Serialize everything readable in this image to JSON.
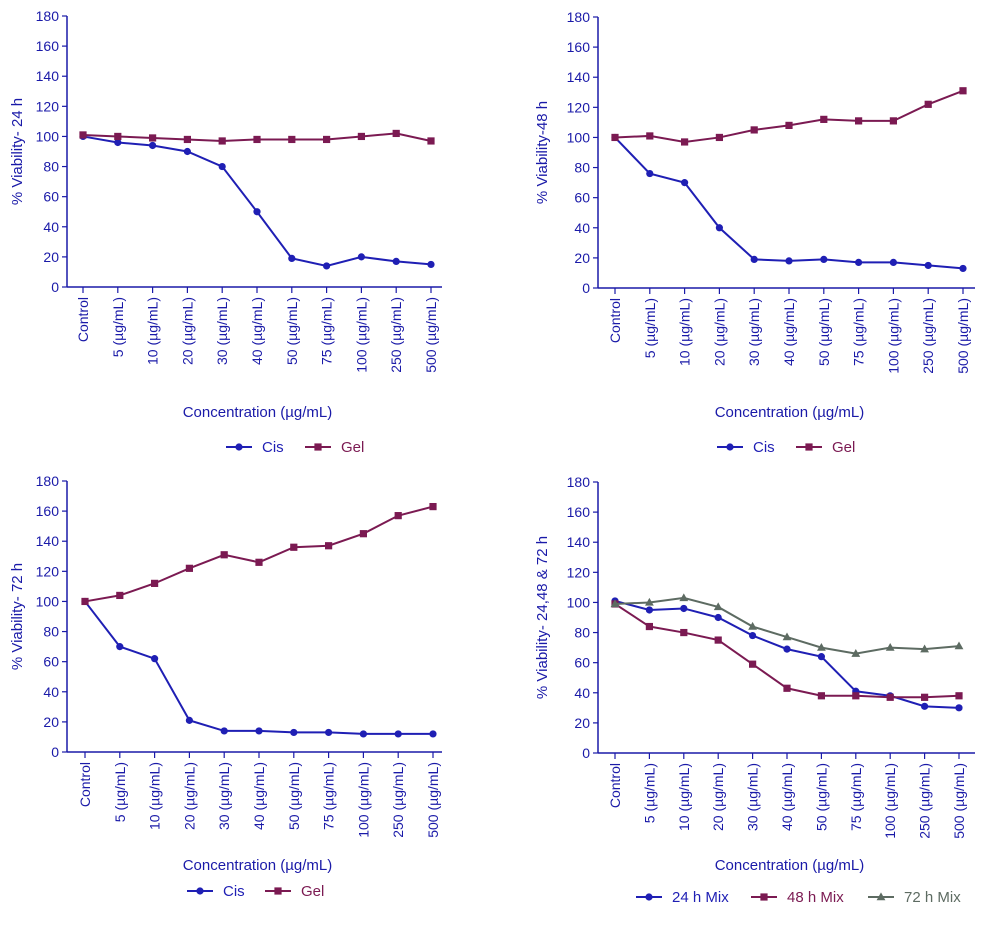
{
  "chart_data": [
    {
      "type": "line",
      "xlabel": "Concentration (µg/mL)",
      "ylabel": "% Viability- 24 h",
      "ylim": [
        0,
        180
      ],
      "ytick_step": 20,
      "grid": false,
      "legend_position": "bottom",
      "categories": [
        "Control",
        "5 (µg/mL)",
        "10 (µg/mL)",
        "20 (µg/mL)",
        "30 (µg/mL)",
        "40 (µg/mL)",
        "50 (µg/mL)",
        "75 (µg/mL)",
        "100 (µg/mL)",
        "250 (µg/mL)",
        "500 (µg/mL)"
      ],
      "series": [
        {
          "name": "Cis",
          "color": "#1f1fb4",
          "marker": "circle",
          "values": [
            100,
            96,
            94,
            90,
            80,
            50,
            19,
            14,
            20,
            17,
            15
          ]
        },
        {
          "name": "Gel",
          "color": "#7b1a52",
          "marker": "square",
          "values": [
            101,
            100,
            99,
            98,
            97,
            98,
            98,
            98,
            100,
            102,
            97
          ]
        }
      ]
    },
    {
      "type": "line",
      "xlabel": "Concentration (µg/mL)",
      "ylabel": "% Viability-48 h",
      "ylim": [
        0,
        180
      ],
      "ytick_step": 20,
      "grid": false,
      "legend_position": "bottom",
      "categories": [
        "Control",
        "5 (µg/mL)",
        "10 (µg/mL)",
        "20 (µg/mL)",
        "30 (µg/mL)",
        "40 (µg/mL)",
        "50 (µg/mL)",
        "75 (µg/mL)",
        "100 (µg/mL)",
        "250 (µg/mL)",
        "500 (µg/mL)"
      ],
      "series": [
        {
          "name": "Cis",
          "color": "#1f1fb4",
          "marker": "circle",
          "values": [
            100,
            76,
            70,
            40,
            19,
            18,
            19,
            17,
            17,
            15,
            13
          ]
        },
        {
          "name": "Gel",
          "color": "#7b1a52",
          "marker": "square",
          "values": [
            100,
            101,
            97,
            100,
            105,
            108,
            112,
            111,
            111,
            122,
            131
          ]
        }
      ]
    },
    {
      "type": "line",
      "xlabel": "Concentration (µg/mL)",
      "ylabel": "% Viability- 72 h",
      "ylim": [
        0,
        180
      ],
      "ytick_step": 20,
      "grid": false,
      "legend_position": "bottom",
      "categories": [
        "Control",
        "5 (µg/mL)",
        "10 (µg/mL)",
        "20 (µg/mL)",
        "30 (µg/mL)",
        "40 (µg/mL)",
        "50 (µg/mL)",
        "75 (µg/mL)",
        "100 (µg/mL)",
        "250 (µg/mL)",
        "500 (µg/mL)"
      ],
      "series": [
        {
          "name": "Cis",
          "color": "#1f1fb4",
          "marker": "circle",
          "values": [
            100,
            70,
            62,
            21,
            14,
            14,
            13,
            13,
            12,
            12,
            12
          ]
        },
        {
          "name": "Gel",
          "color": "#7b1a52",
          "marker": "square",
          "values": [
            100,
            104,
            112,
            122,
            131,
            126,
            136,
            137,
            145,
            157,
            163
          ]
        }
      ]
    },
    {
      "type": "line",
      "xlabel": "Concentration (µg/mL)",
      "ylabel": "% Viability- 24,48 & 72 h",
      "ylim": [
        0,
        180
      ],
      "ytick_step": 20,
      "grid": false,
      "legend_position": "bottom",
      "categories": [
        "Control",
        "5 (µg/mL)",
        "10 (µg/mL)",
        "20 (µg/mL)",
        "30 (µg/mL)",
        "40 (µg/mL)",
        "50 (µg/mL)",
        "75 (µg/mL)",
        "100 (µg/mL)",
        "250 (µg/mL)",
        "500 (µg/mL)"
      ],
      "series": [
        {
          "name": "24 h Mix",
          "color": "#1f1fb4",
          "marker": "circle",
          "values": [
            101,
            95,
            96,
            90,
            78,
            69,
            64,
            41,
            38,
            31,
            30
          ]
        },
        {
          "name": "48 h Mix",
          "color": "#7b1a52",
          "marker": "square",
          "values": [
            99,
            84,
            80,
            75,
            59,
            43,
            38,
            38,
            37,
            37,
            38
          ]
        },
        {
          "name": "72 h Mix",
          "color": "#5d6b62",
          "marker": "triangle",
          "values": [
            99,
            100,
            103,
            97,
            84,
            77,
            70,
            66,
            70,
            69,
            71
          ]
        }
      ]
    }
  ]
}
